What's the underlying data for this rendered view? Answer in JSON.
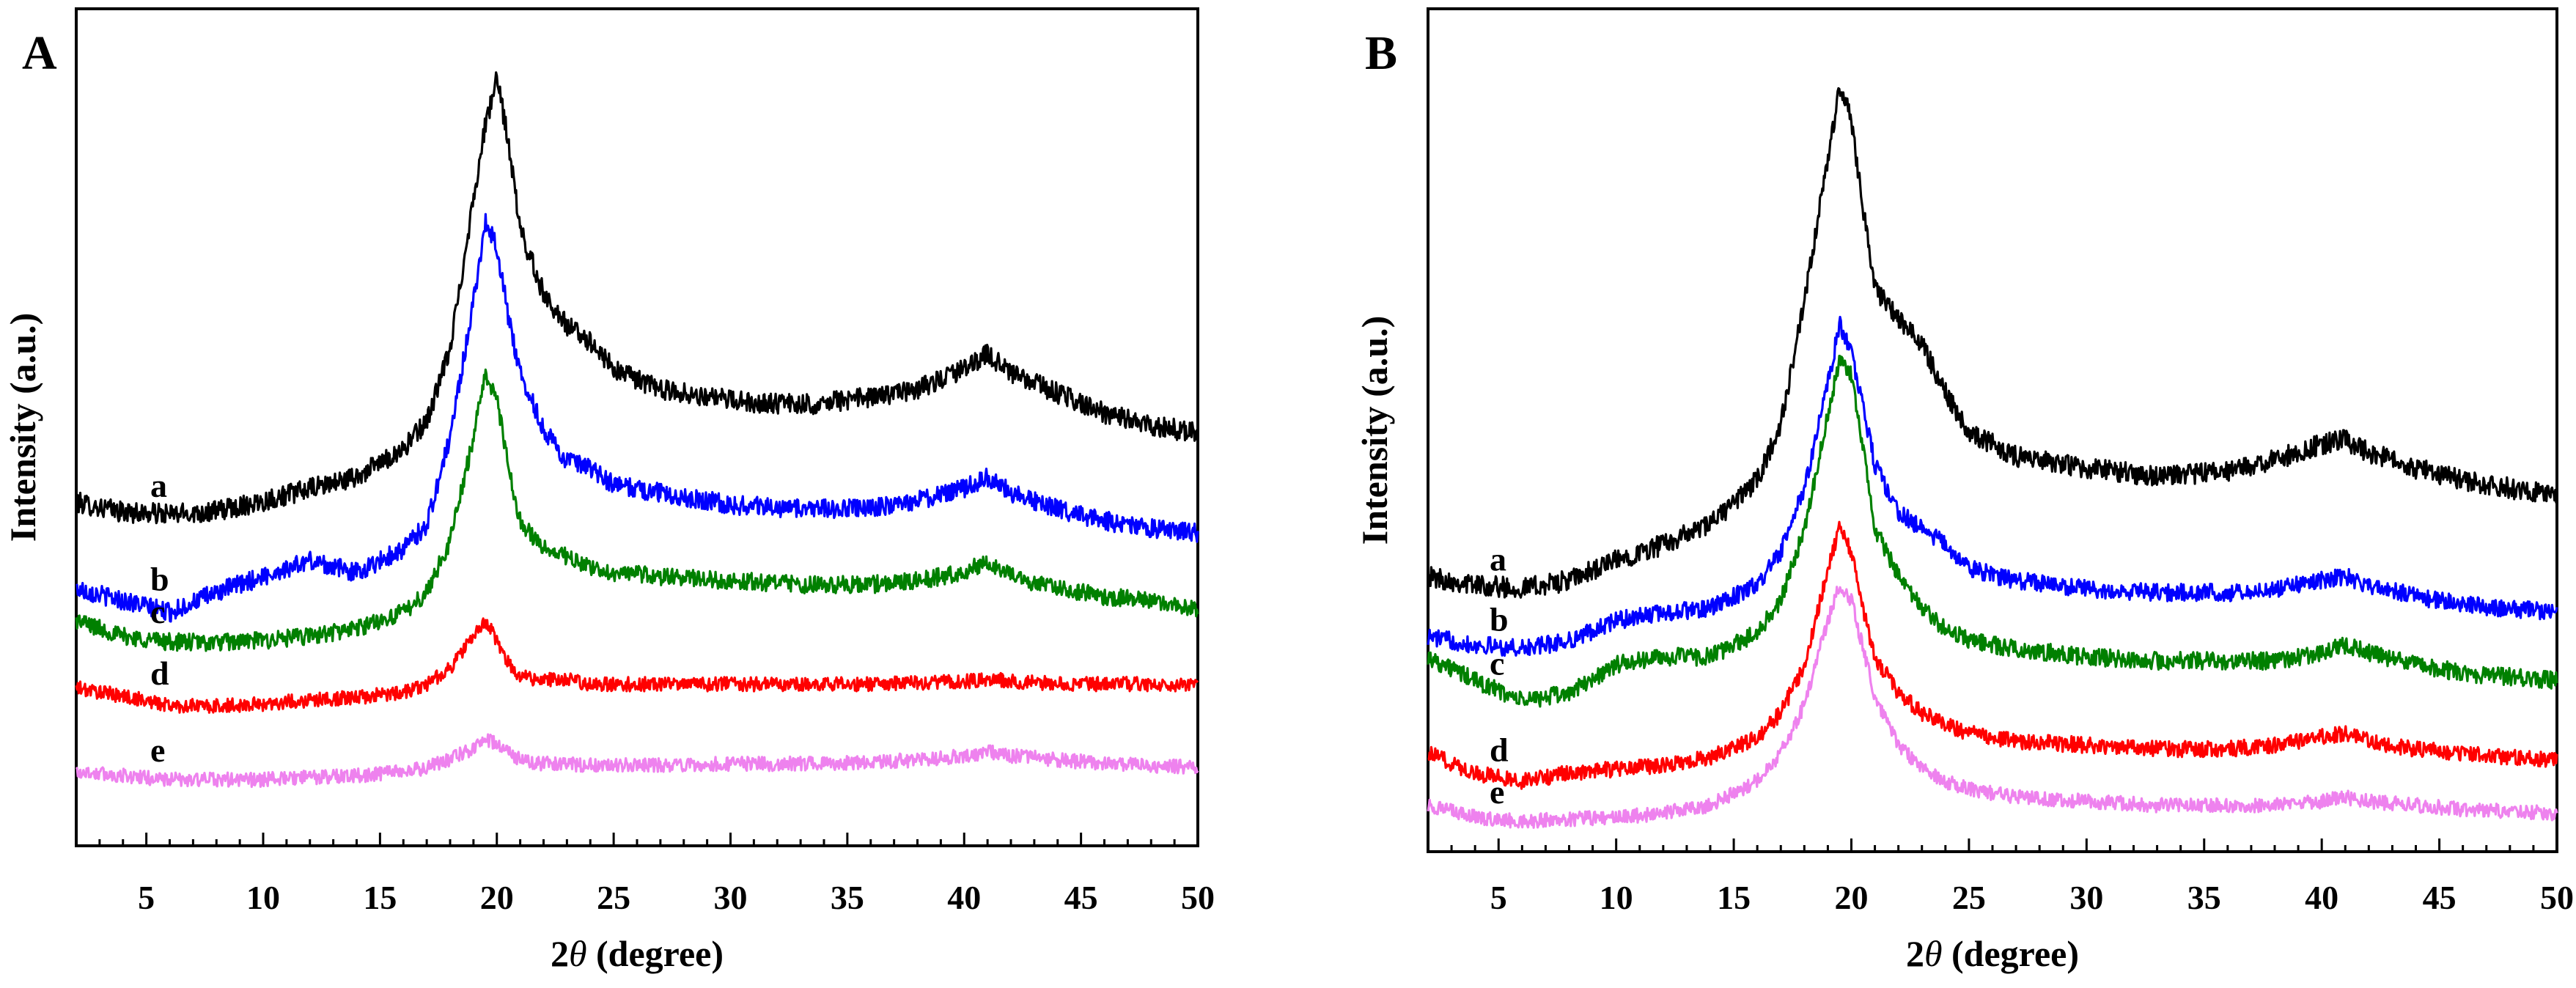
{
  "chart_data": [
    {
      "type": "line",
      "panel": "A",
      "xlabel_prefix": "2",
      "xlabel_symbol": "θ",
      "xlabel_suffix": " (degree)",
      "ylabel": "Intensity (a.u.)",
      "xlim": [
        2,
        50
      ],
      "ylim": [
        0,
        100
      ],
      "xticks": [
        5,
        10,
        15,
        20,
        25,
        30,
        35,
        40,
        45,
        50
      ],
      "yticks_shown": false,
      "x": [
        2,
        4,
        6,
        8,
        10,
        12,
        14,
        16,
        17,
        18,
        19,
        19.5,
        20,
        20.5,
        21,
        22,
        23,
        24,
        25,
        27,
        30,
        33,
        36,
        38,
        40,
        41,
        42,
        44,
        46,
        48,
        50
      ],
      "series": [
        {
          "name": "a",
          "color": "#000000",
          "noise": 1.3,
          "values": [
            40.8,
            39.6,
            39.3,
            39.7,
            41.0,
            42.5,
            44.0,
            47.5,
            51.0,
            60.0,
            79.0,
            88.0,
            94.0,
            86.0,
            75.0,
            67.0,
            63.0,
            61.0,
            57.5,
            55.0,
            53.6,
            53.0,
            54.0,
            55.0,
            57.5,
            59.5,
            57.0,
            54.5,
            52.0,
            50.5,
            49.5
          ]
        },
        {
          "name": "b",
          "color": "#0000ff",
          "noise": 1.2,
          "values": [
            30.0,
            28.5,
            27.0,
            29.5,
            31.5,
            33.5,
            32.0,
            35.0,
            38.0,
            49.0,
            66.0,
            76.0,
            73.0,
            64.0,
            57.0,
            50.0,
            46.0,
            45.0,
            43.0,
            42.0,
            40.5,
            40.0,
            40.0,
            41.0,
            42.5,
            44.0,
            42.0,
            40.0,
            38.5,
            37.5,
            37.0
          ]
        },
        {
          "name": "c",
          "color": "#008000",
          "noise": 1.1,
          "values": [
            26.0,
            24.0,
            23.3,
            23.2,
            23.5,
            24.0,
            25.0,
            27.0,
            29.5,
            36.0,
            49.0,
            57.0,
            54.0,
            45.0,
            38.5,
            35.0,
            34.0,
            32.5,
            32.0,
            31.5,
            31.0,
            30.5,
            30.5,
            31.0,
            32.0,
            33.5,
            31.5,
            30.0,
            29.0,
            28.5,
            27.5
          ]
        },
        {
          "name": "d",
          "color": "#ff0000",
          "noise": 0.9,
          "values": [
            17.5,
            16.5,
            15.3,
            15.2,
            15.5,
            16.0,
            16.3,
            17.0,
            18.0,
            20.0,
            24.0,
            26.0,
            23.5,
            20.5,
            19.0,
            18.5,
            18.5,
            18.0,
            18.0,
            18.0,
            18.0,
            18.0,
            18.0,
            18.2,
            18.3,
            18.7,
            18.4,
            18.0,
            18.0,
            18.0,
            17.8
          ]
        },
        {
          "name": "e",
          "color": "#ee82ee",
          "noise": 0.9,
          "values": [
            7.0,
            6.5,
            6.0,
            6.0,
            6.0,
            6.3,
            6.5,
            7.0,
            7.5,
            8.5,
            10.0,
            11.0,
            10.5,
            9.5,
            8.5,
            8.0,
            8.0,
            7.8,
            7.8,
            7.8,
            8.0,
            8.0,
            8.2,
            8.5,
            9.0,
            9.5,
            9.0,
            8.5,
            8.0,
            7.8,
            7.5
          ]
        }
      ]
    },
    {
      "type": "line",
      "panel": "B",
      "xlabel_prefix": "2",
      "xlabel_symbol": "θ",
      "xlabel_suffix": " (degree)",
      "ylabel": "Intensity (a.u.)",
      "xlim": [
        2,
        50
      ],
      "ylim": [
        0,
        100
      ],
      "xticks": [
        5,
        10,
        15,
        20,
        25,
        30,
        35,
        40,
        45,
        50
      ],
      "yticks_shown": false,
      "x": [
        2,
        4,
        6,
        8,
        10,
        12,
        14,
        16,
        17,
        18,
        19,
        19.5,
        20,
        20.5,
        21,
        22,
        23,
        24,
        25,
        27,
        30,
        33,
        36,
        38,
        40,
        41,
        42,
        44,
        46,
        48,
        50
      ],
      "series": [
        {
          "name": "a",
          "color": "#000000",
          "noise": 1.3,
          "values": [
            32.0,
            31.0,
            30.5,
            31.5,
            34.0,
            36.0,
            38.5,
            44.0,
            51.0,
            66.0,
            84.0,
            93.0,
            89.0,
            78.0,
            68.0,
            64.0,
            61.0,
            55.0,
            50.0,
            47.0,
            45.5,
            44.5,
            45.0,
            46.5,
            48.5,
            49.0,
            47.5,
            45.5,
            44.0,
            43.0,
            42.0
          ]
        },
        {
          "name": "b",
          "color": "#0000ff",
          "noise": 1.1,
          "values": [
            24.5,
            23.5,
            23.0,
            24.0,
            26.5,
            27.5,
            28.0,
            31.0,
            35.0,
            43.0,
            56.0,
            63.5,
            60.0,
            53.0,
            46.0,
            40.0,
            38.0,
            36.0,
            33.0,
            31.5,
            30.5,
            30.0,
            30.0,
            30.5,
            31.5,
            32.0,
            31.0,
            29.5,
            28.5,
            28.0,
            27.5
          ]
        },
        {
          "name": "c",
          "color": "#008000",
          "noise": 1.1,
          "values": [
            22.0,
            19.0,
            16.5,
            17.5,
            21.0,
            22.0,
            22.0,
            25.0,
            29.0,
            38.0,
            52.0,
            59.0,
            57.0,
            48.0,
            38.0,
            32.0,
            28.0,
            25.5,
            24.0,
            23.0,
            22.0,
            21.5,
            21.5,
            21.5,
            22.5,
            23.5,
            22.5,
            21.0,
            20.0,
            19.5,
            19.0
          ]
        },
        {
          "name": "d",
          "color": "#ff0000",
          "noise": 1.0,
          "values": [
            10.0,
            7.5,
            6.5,
            7.5,
            8.0,
            8.5,
            9.5,
            12.0,
            15.0,
            21.0,
            33.0,
            38.0,
            35.0,
            28.0,
            22.0,
            17.5,
            15.0,
            13.5,
            12.5,
            11.5,
            11.0,
            10.5,
            10.5,
            11.0,
            12.0,
            12.5,
            11.5,
            10.5,
            10.0,
            9.5,
            9.0
          ]
        },
        {
          "name": "e",
          "color": "#ee82ee",
          "noise": 0.9,
          "values": [
            3.5,
            2.0,
            1.5,
            1.8,
            2.0,
            2.5,
            3.5,
            6.5,
            10.0,
            16.0,
            26.5,
            31.0,
            29.0,
            23.0,
            17.0,
            11.0,
            8.0,
            6.5,
            5.5,
            4.5,
            4.0,
            3.5,
            3.5,
            3.5,
            4.0,
            4.5,
            4.0,
            3.5,
            3.0,
            2.8,
            2.5
          ]
        }
      ]
    }
  ]
}
